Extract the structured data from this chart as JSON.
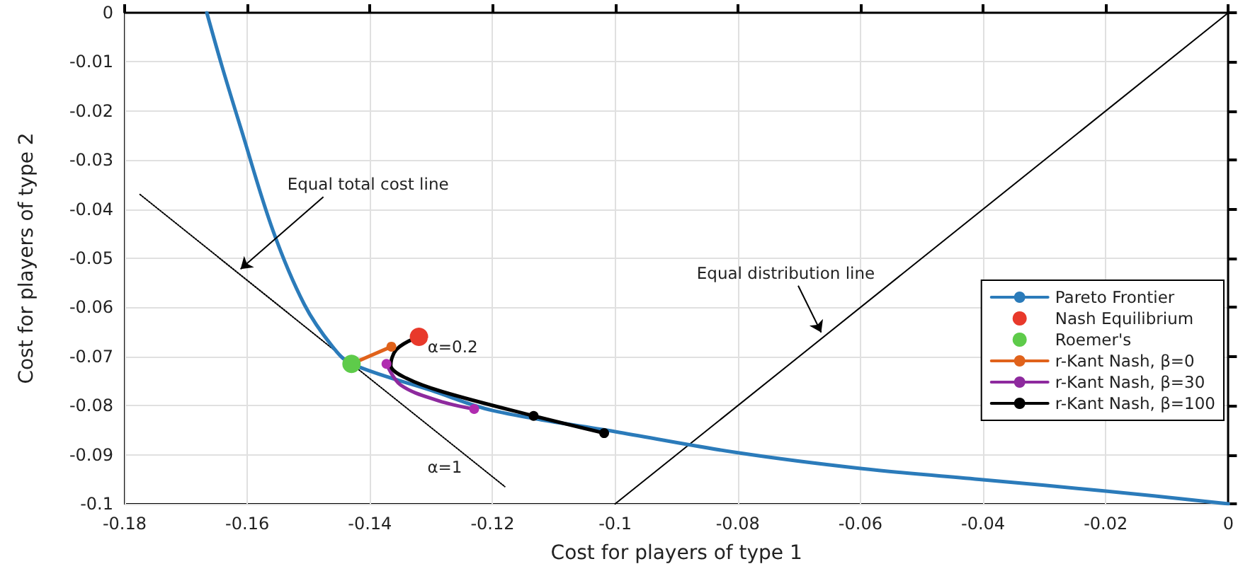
{
  "chart_data": {
    "type": "line",
    "xlabel": "Cost for players of type 1",
    "ylabel": "Cost for players of type 2",
    "xlim": [
      -0.18,
      0
    ],
    "xticks": [
      -0.18,
      -0.16,
      -0.14,
      -0.12,
      -0.1,
      -0.08,
      -0.06,
      -0.04,
      -0.02,
      0
    ],
    "ylim": [
      -0.1,
      0
    ],
    "yticks": [
      -0.1,
      -0.09,
      -0.08,
      -0.07,
      -0.06,
      -0.05,
      -0.04,
      -0.03,
      -0.02,
      -0.01,
      0
    ],
    "grid": true,
    "legend": "right",
    "marker": "none",
    "series": [
      {
        "x": [
          -0.1775,
          -0.118
        ],
        "values": [
          -0.037,
          -0.0965
        ],
        "color": "#000000",
        "line_style": "dotted"
      },
      {
        "x": [
          -0.1,
          0
        ],
        "values": [
          -0.1,
          0
        ],
        "color": "#000000",
        "line_style": "solid"
      },
      {
        "name": "Pareto Frontier",
        "color": "#2b7bba",
        "line_style": "solid",
        "x": [
          -0.1666,
          -0.1641,
          -0.1611,
          -0.1558,
          -0.1507,
          -0.1461,
          -0.143,
          -0.13,
          -0.12,
          -0.1,
          -0.08,
          -0.06,
          -0.04,
          -0.02,
          0
        ],
        "values": [
          0,
          -0.011,
          -0.0233,
          -0.0444,
          -0.0594,
          -0.068,
          -0.0715,
          -0.0769,
          -0.081,
          -0.0853,
          -0.0896,
          -0.0928,
          -0.0951,
          -0.0974,
          -0.1
        ]
      },
      {
        "name": "Nash Equilibrium",
        "type": "scatter",
        "marker": "circle",
        "color": "#e8392b",
        "x": [
          -0.132
        ],
        "values": [
          -0.066
        ]
      },
      {
        "name": "Roemer's",
        "type": "scatter",
        "marker": "circle",
        "color": "#5ecb4a",
        "x": [
          -0.143
        ],
        "values": [
          -0.0715
        ]
      },
      {
        "name": "r-Kant Nash, β=0",
        "color": "#e0621b",
        "line_style": "solid",
        "x": [
          -0.143,
          -0.1365
        ],
        "values": [
          -0.0715,
          -0.068
        ]
      },
      {
        "name": "r-Kant Nash, β=30",
        "color": "#8e2a9e",
        "line_style": "solid",
        "x": [
          -0.1373,
          -0.135,
          -0.1288,
          -0.123
        ],
        "values": [
          -0.0715,
          -0.0758,
          -0.079,
          -0.0807
        ]
      },
      {
        "name": "r-Kant Nash, β=100",
        "color": "#000000",
        "line_style": "solid",
        "x": [
          -0.1327,
          -0.1357,
          -0.1366,
          -0.1341,
          -0.1281,
          -0.1133,
          -0.1018
        ],
        "values": [
          -0.0663,
          -0.0686,
          -0.0718,
          -0.0744,
          -0.0772,
          -0.0821,
          -0.0856
        ]
      },
      {
        "type": "scatter",
        "marker": "circle",
        "color": "#e0621b",
        "x": [
          -0.1365
        ],
        "values": [
          -0.068
        ]
      },
      {
        "type": "scatter",
        "marker": "circle",
        "color": "#b02cb0",
        "x": [
          -0.1373,
          -0.123
        ],
        "values": [
          -0.0715,
          -0.0807
        ]
      },
      {
        "type": "scatter",
        "marker": "circle",
        "color": "#000000",
        "x": [
          -0.1133,
          -0.1018
        ],
        "values": [
          -0.0821,
          -0.0856
        ]
      }
    ],
    "annotations": [
      {
        "text": "Equal total cost line",
        "x": -0.1611,
        "y": -0.0522
      },
      {
        "text": "Equal distribution line",
        "x": -0.0664,
        "y": -0.0651
      },
      {
        "text": "α=0.2",
        "x": -0.1265,
        "y": -0.068
      },
      {
        "text": "α=1",
        "x": -0.1278,
        "y": -0.0925
      }
    ]
  }
}
